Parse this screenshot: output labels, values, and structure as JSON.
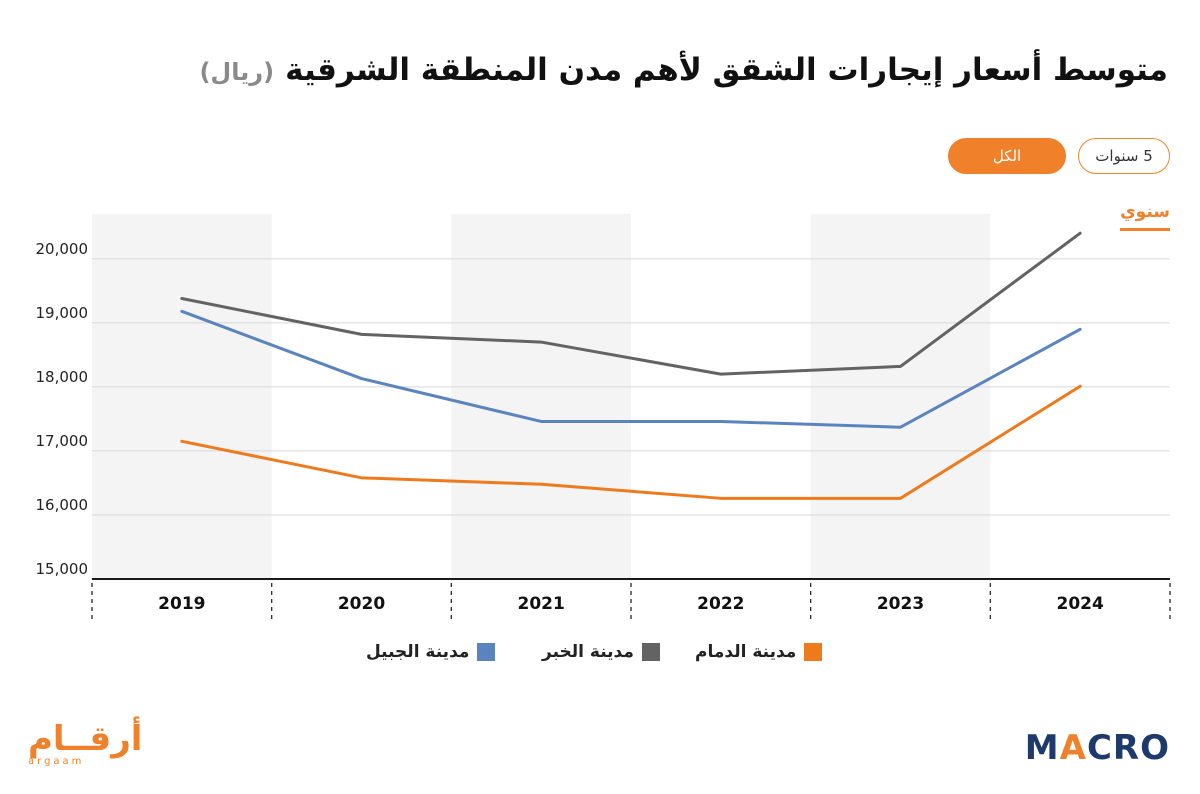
{
  "header": {
    "title": "متوسط أسعار إيجارات الشقق لأهم مدن المنطقة الشرقية",
    "unit": "(ريال)"
  },
  "controls": {
    "range_label": "5 سنوات",
    "filter_label": "الكل",
    "period_tab": "سنوي"
  },
  "colors": {
    "accent": "#f0812a",
    "dammam": "#ee7a1e",
    "khobar": "#636363",
    "jubail": "#5b84bf",
    "band": "#f4f4f4",
    "grid": "#d8d8d8"
  },
  "chart_data": {
    "type": "line",
    "categories": [
      "2019",
      "2020",
      "2021",
      "2022",
      "2023",
      "2024"
    ],
    "ylim": [
      15000,
      20700
    ],
    "yticks": [
      "15,000",
      "16,000",
      "17,000",
      "18,000",
      "19,000",
      "20,000"
    ],
    "ytick_values": [
      15000,
      16000,
      17000,
      18000,
      19000,
      20000
    ],
    "series": [
      {
        "name": "مدينة الخبر",
        "color": "#636363",
        "values": [
          19380,
          18820,
          18700,
          18200,
          18320,
          20400
        ]
      },
      {
        "name": "مدينة  الجبيل",
        "color": "#5b84bf",
        "values": [
          19180,
          18130,
          17460,
          17460,
          17370,
          18900
        ]
      },
      {
        "name": "مدينة الدمام",
        "color": "#ee7a1e",
        "values": [
          17150,
          16580,
          16480,
          16260,
          16260,
          18010
        ]
      }
    ],
    "legend_placement": "bottom",
    "grid": true
  },
  "logos": {
    "arqaam_ar": "أرقــام",
    "arqaam_en": "argaam",
    "macro_a": "M",
    "macro_bolt": "A",
    "macro_b": "CRO"
  }
}
